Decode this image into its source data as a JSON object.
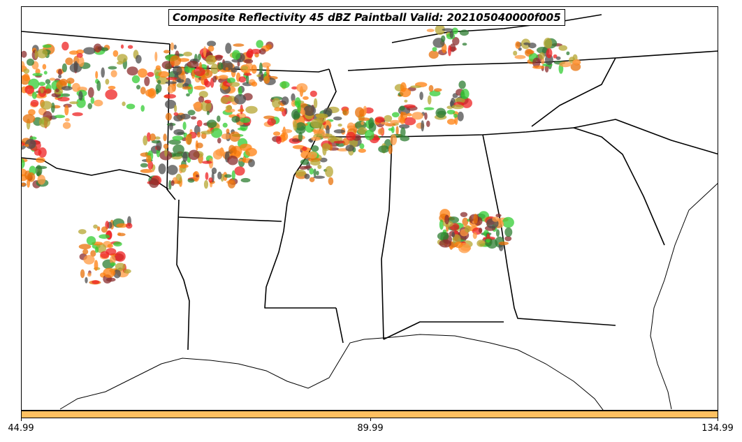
{
  "title": "Composite Reflectivity 45 dBZ Paintball Valid: 202105040000f005",
  "colorbar": {
    "color": "#ffc060",
    "ticks": [
      "44.99",
      "89.99",
      "134.99"
    ]
  },
  "paint_colors": [
    "#ff7f0e",
    "#e8710a",
    "#ee2222",
    "#33cc33",
    "#2e7d32",
    "#4d4d4d",
    "#8b2e2e",
    "#b5a532",
    "#ff9a40"
  ]
}
